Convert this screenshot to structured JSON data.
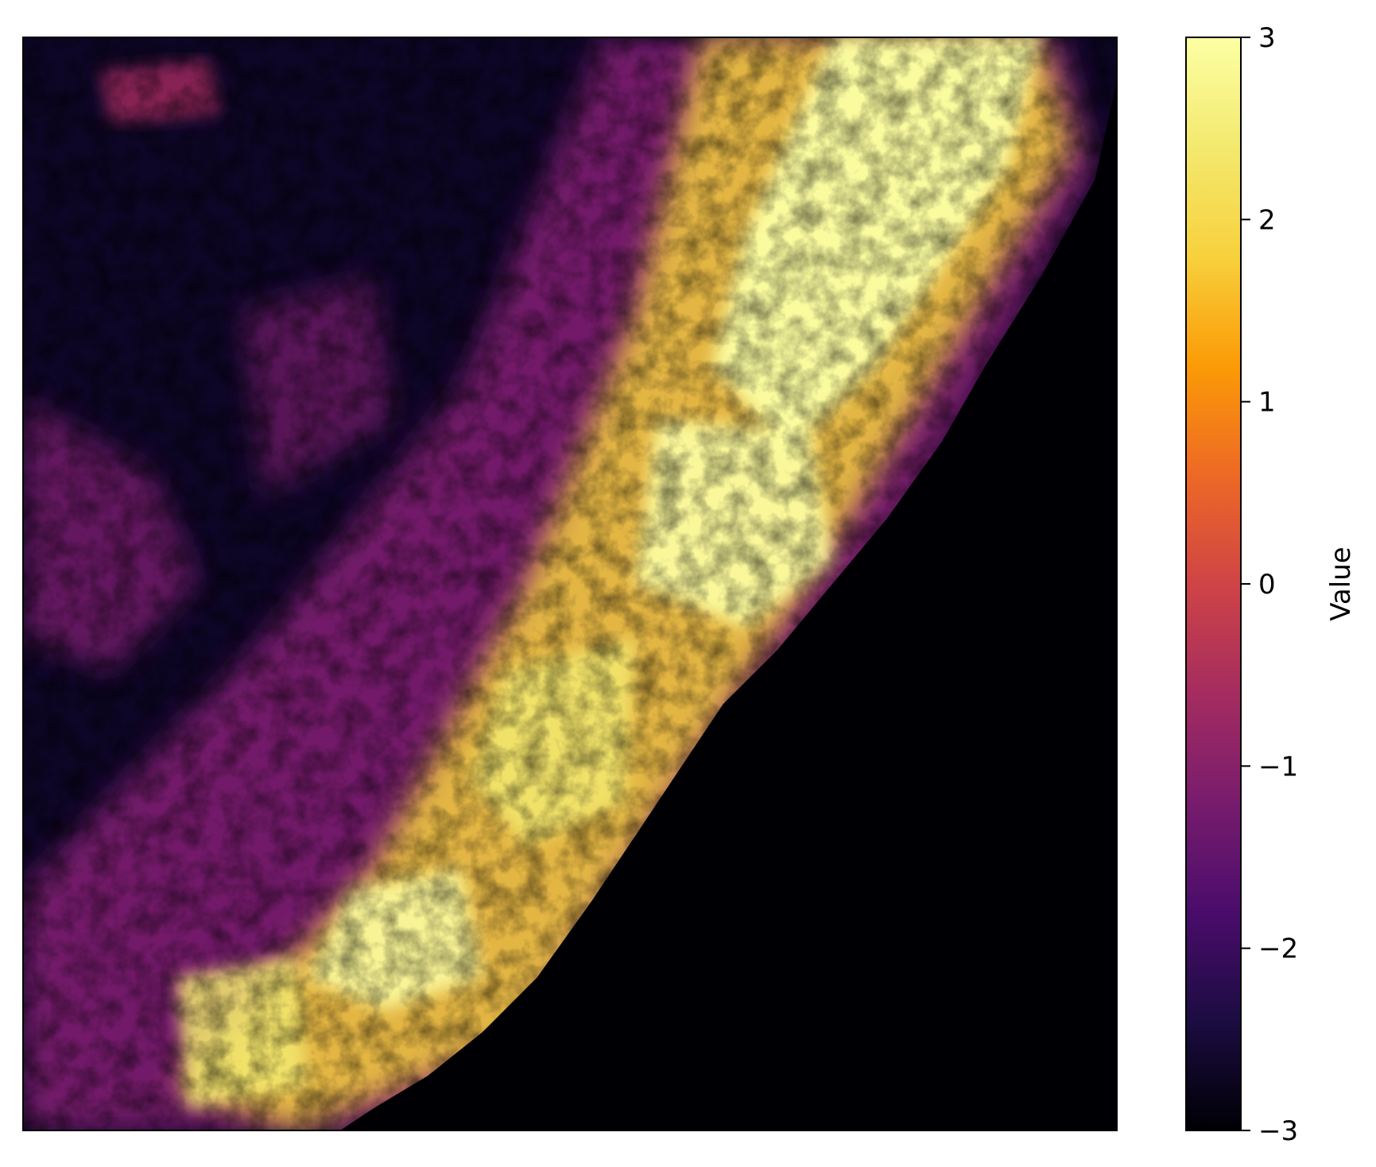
{
  "chart_data": {
    "type": "heatmap",
    "title": "",
    "xlabel": "",
    "ylabel": "",
    "colormap": "inferno",
    "value_range": [
      -3,
      3
    ],
    "axes_ticks_visible": false,
    "grid": false,
    "colorbar": {
      "label": "Value",
      "placement": "right",
      "ticks": [
        {
          "value": 3,
          "label": "3"
        },
        {
          "value": 2,
          "label": "2"
        },
        {
          "value": 1,
          "label": "1"
        },
        {
          "value": 0,
          "label": "0"
        },
        {
          "value": -1,
          "label": "−1"
        },
        {
          "value": -2,
          "label": "−2"
        },
        {
          "value": -3,
          "label": "−3"
        }
      ]
    },
    "colormap_stops": [
      {
        "value": -3.0,
        "color": "#000004"
      },
      {
        "value": -2.4,
        "color": "#1b0c41"
      },
      {
        "value": -1.8,
        "color": "#4a0c6b"
      },
      {
        "value": -1.2,
        "color": "#781c6d"
      },
      {
        "value": -0.6,
        "color": "#a52c60"
      },
      {
        "value": 0.0,
        "color": "#cf4446"
      },
      {
        "value": 0.6,
        "color": "#ed6925"
      },
      {
        "value": 1.2,
        "color": "#fb9b06"
      },
      {
        "value": 1.8,
        "color": "#f7d13d"
      },
      {
        "value": 2.4,
        "color": "#f3e96f"
      },
      {
        "value": 3.0,
        "color": "#fcffa4"
      }
    ],
    "description_regions": {
      "background_low": -2.8,
      "ridge_high": 2.8,
      "no_data": -3.0
    }
  }
}
